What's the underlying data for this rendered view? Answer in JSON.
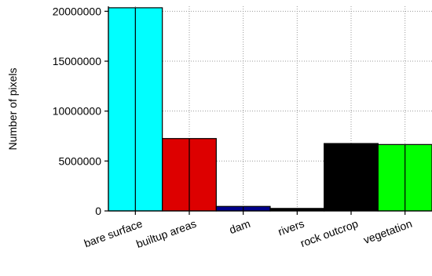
{
  "chart_data": {
    "type": "bar",
    "title": "",
    "xlabel": "",
    "ylabel": "Number of pixels",
    "categories": [
      "bare surface",
      "builtup areas",
      "dam",
      "rivers",
      "rock outcrop",
      "vegetation"
    ],
    "values": [
      20350000,
      7250000,
      450000,
      250000,
      6750000,
      6650000
    ],
    "colors": [
      "#00ffff",
      "#dd0000",
      "#00008b",
      "#000000",
      "#000000",
      "#00ff00"
    ],
    "ylim": [
      0,
      20500000
    ],
    "yticks": [
      0,
      5000000,
      10000000,
      15000000,
      20000000
    ],
    "ytick_labels": [
      "0",
      "5000000",
      "10000000",
      "15000000",
      "20000000"
    ],
    "grid": true
  }
}
